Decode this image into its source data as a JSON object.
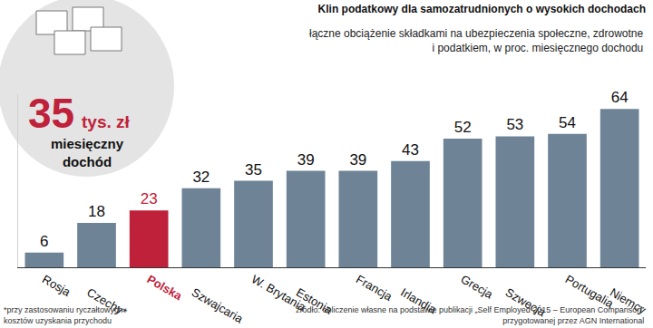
{
  "chart_data": {
    "type": "bar",
    "title": "Klin podatkowy dla samozatrudnionych o wysokich dochodach",
    "subtitle": "łączne obciążenie składkami na ubezpieczenia społeczne, zdrowotne i podatkiem, w proc. miesięcznego dochodu",
    "categories": [
      "Rosja",
      "Czechy*",
      "Polska",
      "Szwajcaria",
      "W. Brytania",
      "Estonia",
      "Francja",
      "Irlandia",
      "Grecja",
      "Szwecja",
      "Portugalia",
      "Niemcy"
    ],
    "values": [
      6,
      18,
      23,
      32,
      35,
      39,
      39,
      43,
      52,
      53,
      54,
      64
    ],
    "colors": [
      "#6e8496",
      "#6e8496",
      "#c0213a",
      "#6e8496",
      "#6e8496",
      "#6e8496",
      "#6e8496",
      "#6e8496",
      "#6e8496",
      "#6e8496",
      "#6e8496",
      "#6e8496"
    ],
    "ylim": [
      0,
      70
    ],
    "yticks": [],
    "grid": false,
    "data_labels": true,
    "tick_labels": "x",
    "annotations": [
      "35 tys. zł",
      "miesięczny dochód"
    ],
    "notes": [
      "*przy zastosowaniu ryczałtowych kosztów uzyskania przychodu",
      "źródło: obliczenie własne na podstawie publikacji „Self Employed 2015 – European Comparison” przygotowanej przez AGN International"
    ]
  }
}
